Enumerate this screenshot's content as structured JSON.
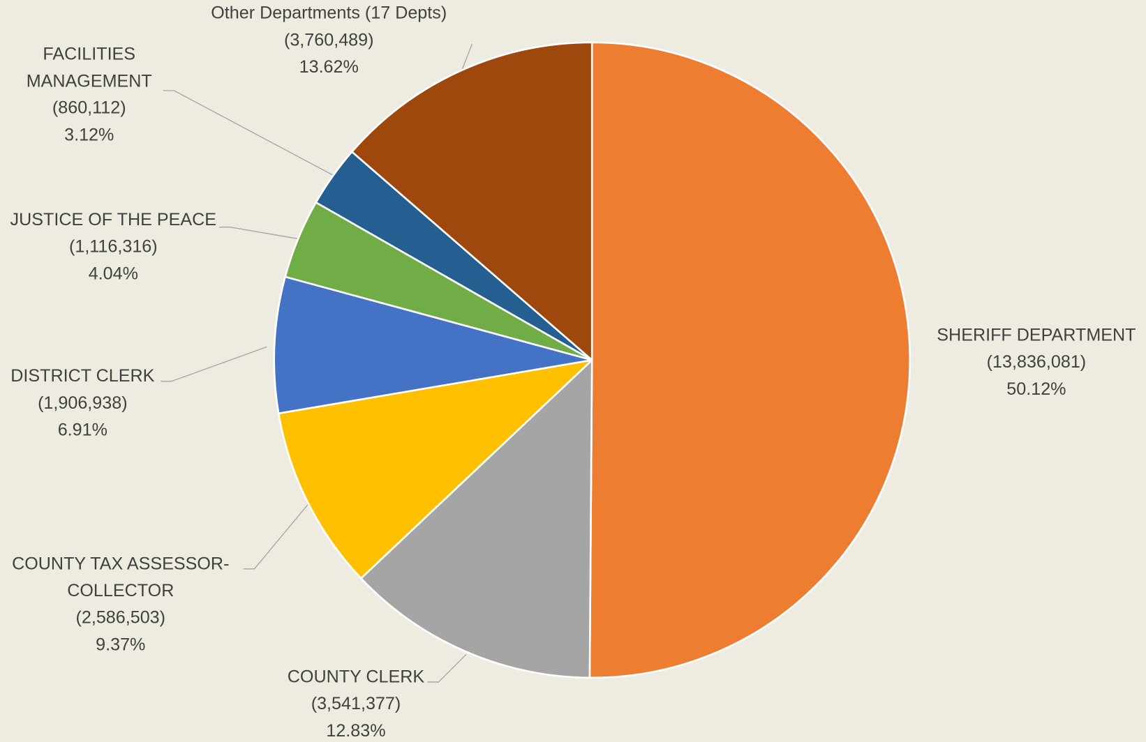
{
  "chart_data": {
    "type": "pie",
    "categories": [
      "SHERIFF DEPARTMENT",
      "COUNTY CLERK",
      "COUNTY TAX ASSESSOR-COLLECTOR",
      "DISTRICT CLERK",
      "JUSTICE OF THE PEACE",
      "FACILITIES MANAGEMENT",
      "Other Departments  (17 Depts)"
    ],
    "values": [
      13836081,
      3541377,
      2586503,
      1906938,
      1116316,
      860112,
      3760489
    ],
    "value_labels": [
      "(13,836,081)",
      "(3,541,377)",
      "(2,586,503)",
      "(1,906,938)",
      "(1,116,316)",
      "(860,112)",
      "(3,760,489)"
    ],
    "percents": [
      50.12,
      12.83,
      9.37,
      6.91,
      4.04,
      3.12,
      13.62
    ],
    "percent_labels": [
      "50.12%",
      "12.83%",
      "9.37%",
      "6.91%",
      "4.04%",
      "3.12%",
      "13.62%"
    ],
    "colors": [
      "#ED7D31",
      "#A5A5A5",
      "#FFC000",
      "#4472C4",
      "#70AD47",
      "#255E91",
      "#9E480E"
    ]
  }
}
